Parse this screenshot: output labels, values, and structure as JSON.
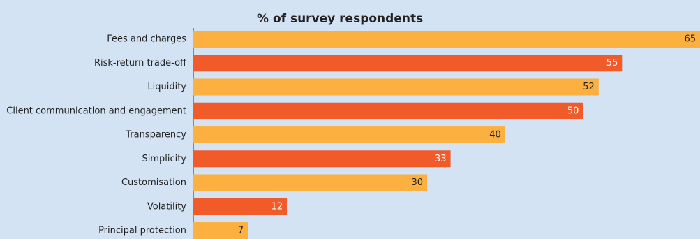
{
  "chart_data": {
    "type": "bar",
    "orientation": "horizontal",
    "title": "% of survey respondents",
    "xlabel": "",
    "ylabel": "",
    "xlim": [
      0,
      65
    ],
    "grid": false,
    "categories": [
      "Fees and charges",
      "Risk-return trade-off",
      "Liquidity",
      "Client communication and engagement",
      "Transparency",
      "Simplicity",
      "Customisation",
      "Volatility",
      "Principal protection"
    ],
    "values": [
      65,
      55,
      52,
      50,
      40,
      33,
      30,
      12,
      7
    ],
    "value_labels": [
      "65",
      "55",
      "52",
      "50",
      "40",
      "33",
      "30",
      "12",
      "7"
    ],
    "colors": {
      "background": "#d3e3f3",
      "bar_alternate_a": "#fbb040",
      "bar_alternate_b": "#f15a29",
      "label_on_light": "#222222",
      "label_on_dark": "#ffffff",
      "axis": "#333333"
    }
  }
}
